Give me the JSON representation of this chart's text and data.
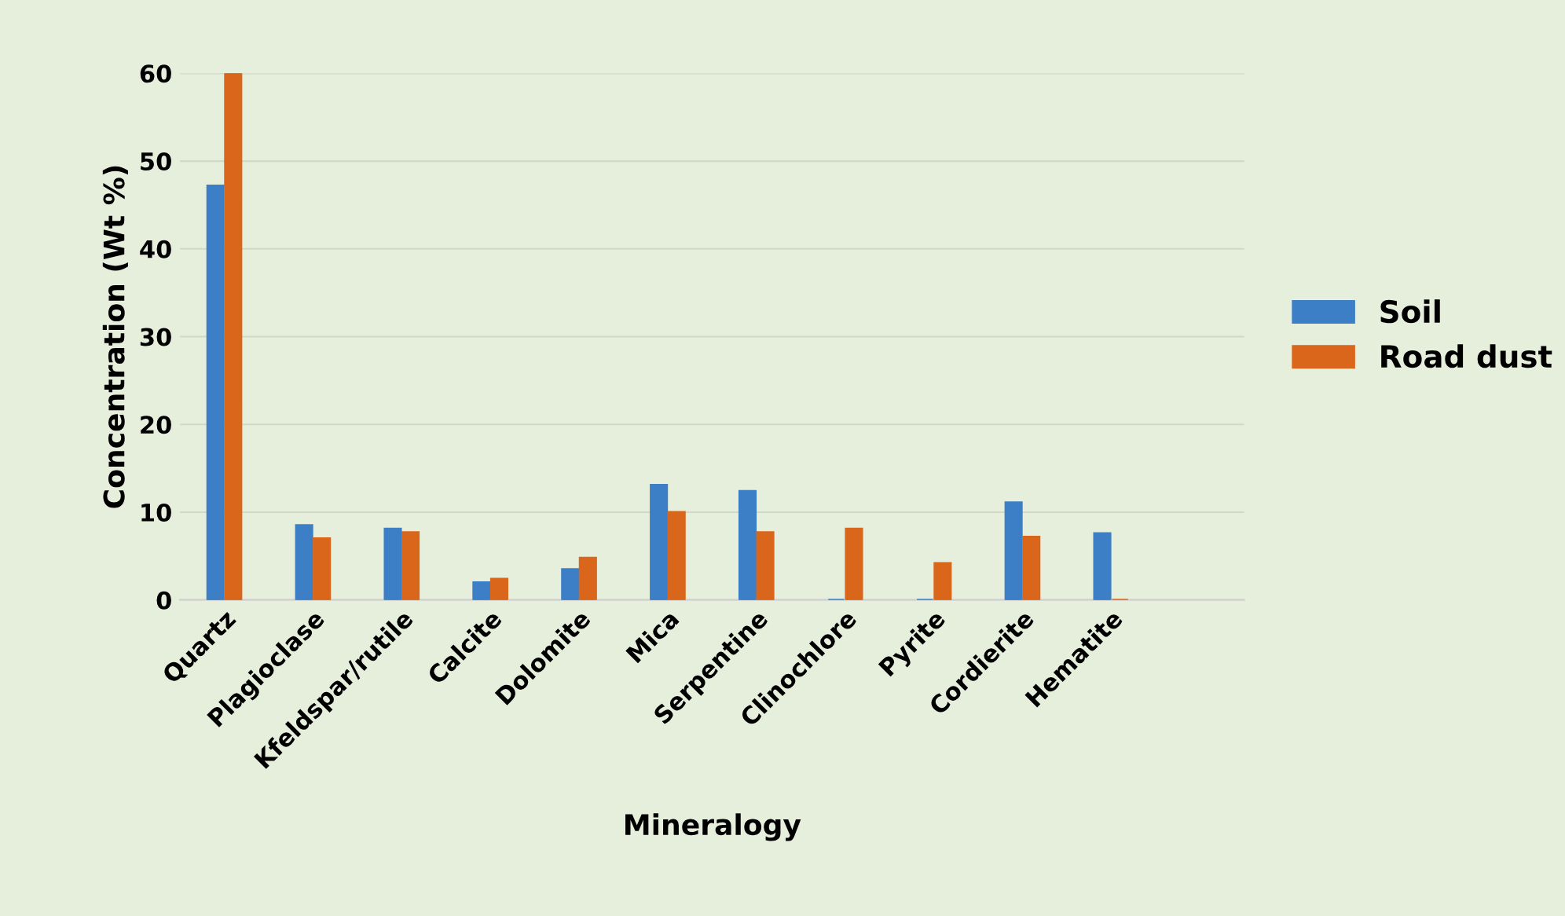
{
  "chart_data": {
    "type": "bar",
    "xlabel": "Mineralogy",
    "ylabel": "Concentration (Wt %)",
    "categories": [
      "Quartz",
      "Plagioclase",
      "Kfeldspar/rutile",
      "Calcite",
      "Dolomite",
      "Mica",
      "Serpentine",
      "Clinochlore",
      "Pyrite",
      "Cordierite",
      "Hematite"
    ],
    "series": [
      {
        "name": "Soil",
        "color": "#3d7fc6",
        "values": [
          47.2,
          8.5,
          8.1,
          2,
          3.5,
          13.1,
          12.4,
          0,
          0,
          11.1,
          7.6
        ]
      },
      {
        "name": "Road dust",
        "color": "#d9661a",
        "values": [
          60,
          7,
          7.7,
          2.4,
          4.8,
          10,
          7.7,
          8.1,
          4.2,
          7.2,
          0
        ]
      }
    ],
    "ylim": [
      0,
      60
    ],
    "yticks": [
      0,
      10,
      20,
      30,
      40,
      50,
      60
    ],
    "grid": "y",
    "legend": "right"
  }
}
